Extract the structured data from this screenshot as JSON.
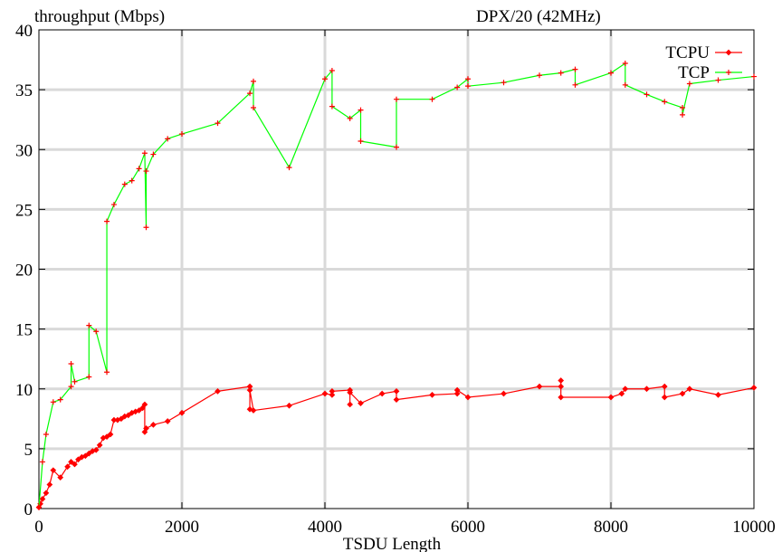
{
  "chart_data": {
    "type": "line",
    "title": "DPX/20 (42MHz)",
    "ylabel": "throughput (Mbps)",
    "xlabel": "TSDU Length",
    "xlim": [
      0,
      10000
    ],
    "ylim": [
      0,
      40
    ],
    "x_ticks": [
      0,
      2000,
      4000,
      6000,
      8000,
      10000
    ],
    "y_ticks": [
      0,
      5,
      10,
      15,
      20,
      25,
      30,
      35,
      40
    ],
    "grid": true,
    "legend_position": "top-right",
    "series": [
      {
        "name": "TCPU",
        "color": "#ff0000",
        "marker": "diamond",
        "points": [
          [
            0,
            0.1
          ],
          [
            20,
            0.4
          ],
          [
            50,
            0.8
          ],
          [
            100,
            1.3
          ],
          [
            150,
            2.0
          ],
          [
            200,
            3.2
          ],
          [
            300,
            2.6
          ],
          [
            400,
            3.5
          ],
          [
            450,
            3.9
          ],
          [
            500,
            3.7
          ],
          [
            550,
            4.1
          ],
          [
            600,
            4.3
          ],
          [
            650,
            4.4
          ],
          [
            700,
            4.6
          ],
          [
            750,
            4.8
          ],
          [
            800,
            4.9
          ],
          [
            850,
            5.3
          ],
          [
            900,
            5.9
          ],
          [
            950,
            6.0
          ],
          [
            1000,
            6.2
          ],
          [
            1050,
            7.4
          ],
          [
            1100,
            7.4
          ],
          [
            1150,
            7.5
          ],
          [
            1200,
            7.7
          ],
          [
            1250,
            7.8
          ],
          [
            1300,
            8.0
          ],
          [
            1350,
            8.1
          ],
          [
            1400,
            8.2
          ],
          [
            1450,
            8.4
          ],
          [
            1480,
            8.7
          ],
          [
            1480,
            6.4
          ],
          [
            1500,
            6.7
          ],
          [
            1600,
            7.0
          ],
          [
            1800,
            7.3
          ],
          [
            2000,
            8.0
          ],
          [
            2500,
            9.8
          ],
          [
            2950,
            10.2
          ],
          [
            2950,
            8.3
          ],
          [
            2950,
            9.9
          ],
          [
            3000,
            8.2
          ],
          [
            3500,
            8.6
          ],
          [
            4000,
            9.6
          ],
          [
            4100,
            9.5
          ],
          [
            4100,
            9.8
          ],
          [
            4350,
            9.9
          ],
          [
            4350,
            8.7
          ],
          [
            4350,
            9.7
          ],
          [
            4500,
            8.8
          ],
          [
            4800,
            9.6
          ],
          [
            5000,
            9.8
          ],
          [
            5000,
            9.1
          ],
          [
            5500,
            9.5
          ],
          [
            5850,
            9.6
          ],
          [
            5850,
            9.9
          ],
          [
            6000,
            9.3
          ],
          [
            6500,
            9.6
          ],
          [
            7000,
            10.2
          ],
          [
            7300,
            10.2
          ],
          [
            7300,
            10.7
          ],
          [
            7300,
            9.3
          ],
          [
            8000,
            9.3
          ],
          [
            8150,
            9.6
          ],
          [
            8200,
            10.0
          ],
          [
            8500,
            10.0
          ],
          [
            8750,
            10.2
          ],
          [
            8750,
            9.3
          ],
          [
            9000,
            9.6
          ],
          [
            9100,
            10.0
          ],
          [
            9500,
            9.5
          ],
          [
            10000,
            10.1
          ]
        ]
      },
      {
        "name": "TCP",
        "color": "#00ff00",
        "marker": "plus",
        "marker_color": "#ff0000",
        "points": [
          [
            0,
            0.1
          ],
          [
            50,
            3.9
          ],
          [
            100,
            6.2
          ],
          [
            200,
            8.9
          ],
          [
            300,
            9.1
          ],
          [
            450,
            10.2
          ],
          [
            450,
            12.1
          ],
          [
            500,
            10.6
          ],
          [
            700,
            11.0
          ],
          [
            700,
            15.3
          ],
          [
            800,
            14.8
          ],
          [
            950,
            11.4
          ],
          [
            950,
            24.0
          ],
          [
            1050,
            25.4
          ],
          [
            1200,
            27.1
          ],
          [
            1300,
            27.4
          ],
          [
            1400,
            28.4
          ],
          [
            1480,
            29.7
          ],
          [
            1500,
            23.5
          ],
          [
            1500,
            28.2
          ],
          [
            1600,
            29.6
          ],
          [
            1800,
            30.9
          ],
          [
            2000,
            31.3
          ],
          [
            2500,
            32.2
          ],
          [
            2950,
            34.7
          ],
          [
            3000,
            35.7
          ],
          [
            3000,
            33.5
          ],
          [
            3500,
            28.5
          ],
          [
            4000,
            35.9
          ],
          [
            4100,
            36.6
          ],
          [
            4100,
            33.6
          ],
          [
            4350,
            32.6
          ],
          [
            4500,
            33.3
          ],
          [
            4500,
            30.7
          ],
          [
            5000,
            30.2
          ],
          [
            5000,
            34.2
          ],
          [
            5500,
            34.2
          ],
          [
            5850,
            35.2
          ],
          [
            6000,
            35.9
          ],
          [
            6000,
            35.3
          ],
          [
            6500,
            35.6
          ],
          [
            7000,
            36.2
          ],
          [
            7300,
            36.4
          ],
          [
            7500,
            36.7
          ],
          [
            7500,
            35.4
          ],
          [
            8000,
            36.4
          ],
          [
            8200,
            37.2
          ],
          [
            8200,
            35.4
          ],
          [
            8500,
            34.6
          ],
          [
            8750,
            34.0
          ],
          [
            9000,
            33.5
          ],
          [
            9000,
            32.9
          ],
          [
            9100,
            35.5
          ],
          [
            9500,
            35.8
          ],
          [
            10000,
            36.1
          ]
        ]
      }
    ]
  }
}
